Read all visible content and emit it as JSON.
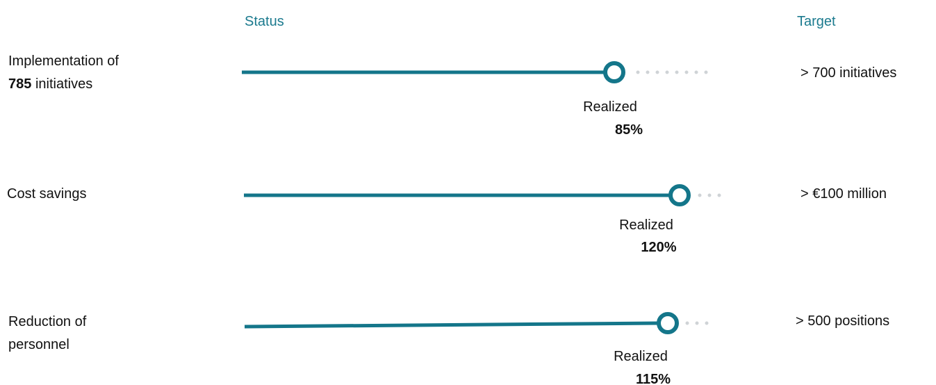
{
  "header": {
    "status": "Status",
    "target": "Target"
  },
  "rows": [
    {
      "label": [
        "Implementation of",
        "785",
        "initiatives"
      ],
      "status_label": "Realized",
      "status": "85%",
      "target": "> 700 initiatives"
    },
    {
      "label": [
        "Cost savings"
      ],
      "status_label": "Realized",
      "status": "120%",
      "target": "> €100 million"
    },
    {
      "label": [
        "Reduction of",
        "personnel"
      ],
      "status_label": "Realized",
      "status": "115%",
      "target": "> 500 positions"
    }
  ]
}
